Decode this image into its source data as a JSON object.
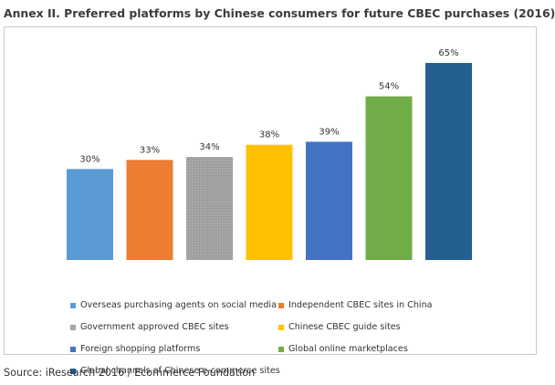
{
  "title": "Annex II. Preferred platforms by Chinese consumers for future CBEC purchases (2016)",
  "source": "Source: iResearch 2016 / Ecommerce Foundation",
  "chart_data": {
    "type": "bar",
    "categories": [
      "Overseas purchasing agents on social media",
      "Independent CBEC sites in China",
      "Government approved CBEC sites",
      "Chinese CBEC guide sites",
      "Foreign shopping platforms",
      "Global online marketplaces",
      "Global channels of Chinese e-commerce sites"
    ],
    "values": [
      30,
      33,
      34,
      38,
      39,
      54,
      65
    ],
    "data_labels": [
      "30%",
      "33%",
      "34%",
      "38%",
      "39%",
      "54%",
      "65%"
    ],
    "colors": [
      "#5b9bd5",
      "#ed7d31",
      "#a5a5a5",
      "#ffc000",
      "#4472c4",
      "#70ad47",
      "#255e91"
    ],
    "ylim": [
      0,
      65
    ],
    "grid": false,
    "legend_position": "bottom",
    "value_format": "percent"
  }
}
